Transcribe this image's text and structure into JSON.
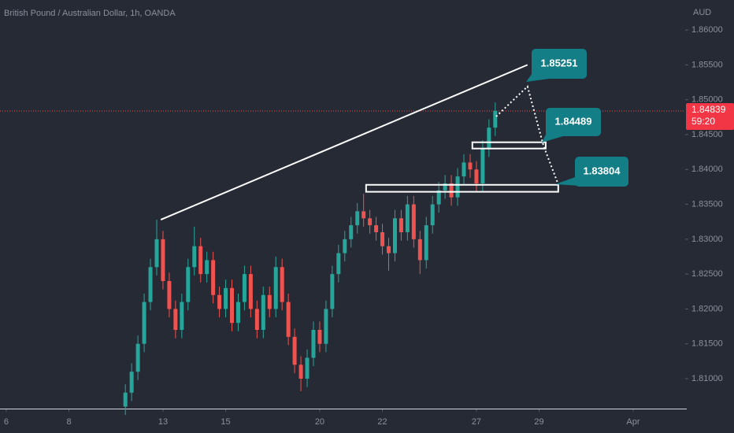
{
  "chart_data": {
    "type": "candlestick",
    "title": "British Pound / Australian Dollar, 1h, OANDA",
    "currency": "AUD",
    "up_color": "#26a69a",
    "down_color": "#ef5350",
    "grid": false,
    "xlim": [
      -0.2,
      21.66
    ],
    "ylim": [
      1.8056,
      1.8643
    ],
    "xticks": [
      {
        "value": 0,
        "label": "6"
      },
      {
        "value": 2,
        "label": "8"
      },
      {
        "value": 5,
        "label": "13"
      },
      {
        "value": 7,
        "label": "15"
      },
      {
        "value": 10,
        "label": "20"
      },
      {
        "value": 12,
        "label": "22"
      },
      {
        "value": 15,
        "label": "27"
      },
      {
        "value": 17,
        "label": "29"
      },
      {
        "value": 20,
        "label": "Apr"
      }
    ],
    "yticks": [
      {
        "value": 1.81,
        "label": "1.81000"
      },
      {
        "value": 1.815,
        "label": "1.81500"
      },
      {
        "value": 1.82,
        "label": "1.82000"
      },
      {
        "value": 1.825,
        "label": "1.82500"
      },
      {
        "value": 1.83,
        "label": "1.83000"
      },
      {
        "value": 1.835,
        "label": "1.83500"
      },
      {
        "value": 1.84,
        "label": "1.84000"
      },
      {
        "value": 1.845,
        "label": "1.84500"
      },
      {
        "value": 1.85,
        "label": "1.85000"
      },
      {
        "value": 1.855,
        "label": "1.85500"
      },
      {
        "value": 1.86,
        "label": "1.86000"
      }
    ],
    "candles": {
      "x": [
        3.8,
        4.0,
        4.2,
        4.4,
        4.6,
        4.8,
        5.0,
        5.2,
        5.4,
        5.6,
        5.8,
        6.0,
        6.2,
        6.4,
        6.6,
        6.8,
        7.0,
        7.2,
        7.4,
        7.6,
        7.8,
        8.0,
        8.2,
        8.4,
        8.6,
        8.8,
        9.0,
        9.2,
        9.4,
        9.6,
        9.8,
        10.0,
        10.2,
        10.4,
        10.6,
        10.8,
        11.0,
        11.2,
        11.4,
        11.6,
        11.8,
        12.0,
        12.2,
        12.4,
        12.6,
        12.8,
        13.0,
        13.2,
        13.4,
        13.6,
        13.8,
        14.0,
        14.2,
        14.4,
        14.6,
        14.8,
        15.0,
        15.2,
        15.4,
        15.6
      ],
      "open": [
        1.806,
        1.808,
        1.811,
        1.815,
        1.821,
        1.826,
        1.83,
        1.824,
        1.82,
        1.817,
        1.821,
        1.826,
        1.829,
        1.825,
        1.827,
        1.822,
        1.82,
        1.823,
        1.818,
        1.821,
        1.825,
        1.82,
        1.817,
        1.822,
        1.82,
        1.826,
        1.821,
        1.816,
        1.812,
        1.81,
        1.813,
        1.817,
        1.815,
        1.82,
        1.825,
        1.828,
        1.83,
        1.832,
        1.834,
        1.833,
        1.832,
        1.831,
        1.829,
        1.828,
        1.833,
        1.831,
        1.835,
        1.83,
        1.827,
        1.832,
        1.835,
        1.837,
        1.838,
        1.836,
        1.839,
        1.841,
        1.84,
        1.838,
        1.843,
        1.846
      ],
      "high": [
        1.8092,
        1.8122,
        1.8162,
        1.8222,
        1.8272,
        1.8328,
        1.8312,
        1.8252,
        1.8212,
        1.8222,
        1.8272,
        1.8318,
        1.8302,
        1.8282,
        1.8282,
        1.8232,
        1.8242,
        1.8242,
        1.8222,
        1.8262,
        1.8262,
        1.8212,
        1.8232,
        1.8232,
        1.8275,
        1.8272,
        1.8222,
        1.8172,
        1.8132,
        1.8142,
        1.8182,
        1.8182,
        1.8212,
        1.8262,
        1.8292,
        1.8312,
        1.8332,
        1.8352,
        1.8365,
        1.8342,
        1.8332,
        1.8322,
        1.8302,
        1.8342,
        1.8342,
        1.8362,
        1.8362,
        1.8312,
        1.8332,
        1.8362,
        1.8382,
        1.8392,
        1.8392,
        1.8402,
        1.8422,
        1.8422,
        1.8412,
        1.8442,
        1.8472,
        1.8496
      ],
      "low": [
        1.8048,
        1.8068,
        1.8098,
        1.8138,
        1.8198,
        1.8248,
        1.8228,
        1.8188,
        1.8158,
        1.8158,
        1.8198,
        1.8248,
        1.8238,
        1.8238,
        1.8208,
        1.8188,
        1.8188,
        1.8168,
        1.8168,
        1.8198,
        1.8188,
        1.8158,
        1.8158,
        1.8188,
        1.8188,
        1.8198,
        1.8148,
        1.8108,
        1.8082,
        1.8088,
        1.8118,
        1.8138,
        1.8138,
        1.8188,
        1.8238,
        1.8268,
        1.8288,
        1.8308,
        1.8318,
        1.8308,
        1.8298,
        1.8278,
        1.8255,
        1.8268,
        1.8298,
        1.8298,
        1.8288,
        1.825,
        1.8258,
        1.8308,
        1.8338,
        1.8358,
        1.8348,
        1.8348,
        1.8378,
        1.8388,
        1.8368,
        1.8368,
        1.8418,
        1.8448
      ],
      "close": [
        1.808,
        1.811,
        1.815,
        1.821,
        1.826,
        1.83,
        1.824,
        1.82,
        1.817,
        1.821,
        1.826,
        1.829,
        1.825,
        1.827,
        1.822,
        1.82,
        1.823,
        1.818,
        1.821,
        1.825,
        1.82,
        1.817,
        1.822,
        1.82,
        1.826,
        1.821,
        1.816,
        1.812,
        1.81,
        1.813,
        1.817,
        1.815,
        1.82,
        1.825,
        1.828,
        1.83,
        1.832,
        1.834,
        1.833,
        1.832,
        1.831,
        1.829,
        1.828,
        1.833,
        1.831,
        1.835,
        1.83,
        1.827,
        1.832,
        1.835,
        1.837,
        1.838,
        1.836,
        1.839,
        1.841,
        1.84,
        1.838,
        1.843,
        1.846,
        1.8484
      ]
    },
    "trend_line": {
      "x": [
        4.93,
        16.63
      ],
      "y": [
        1.8328,
        1.855
      ]
    },
    "projection": {
      "x": [
        15.63,
        16.63,
        17.14,
        17.59
      ],
      "y": [
        1.8476,
        1.8519,
        1.8434,
        1.8381
      ]
    },
    "zones": [
      {
        "start": 14.87,
        "end": 17.21,
        "top": 1.8439,
        "bottom": 1.843
      },
      {
        "start": 11.48,
        "end": 17.61,
        "top": 1.8378,
        "bottom": 1.8368
      }
    ],
    "callouts": [
      "1.85251",
      "1.84489",
      "1.83804"
    ],
    "last_price": 1.84839,
    "countdown": "59:20"
  }
}
